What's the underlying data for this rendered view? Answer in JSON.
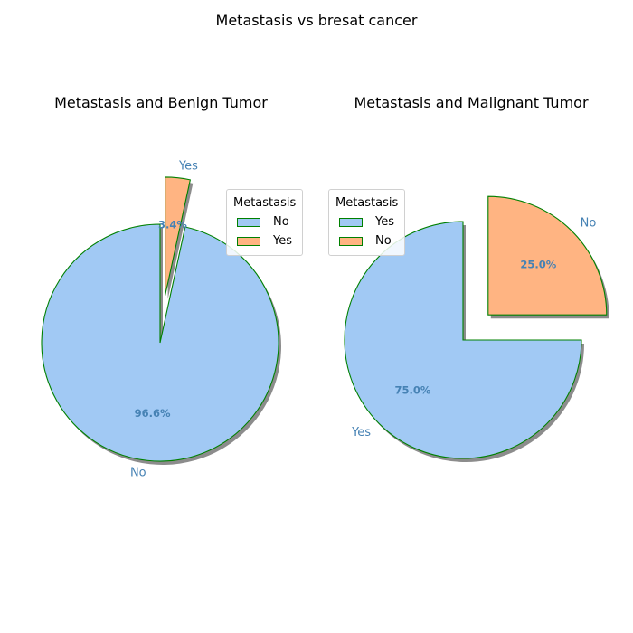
{
  "figure_title": "Metastasis vs bresat cancer",
  "colors": {
    "slice_1": "#a1c9f4",
    "slice_2": "#ffb482",
    "edge": "#008000",
    "label": "#4682b4",
    "pct": "#4682b4",
    "shadow": "#808080"
  },
  "chart_data": [
    {
      "type": "pie",
      "title": "Metastasis and Benign Tumor",
      "legend": {
        "title": "Metastasis",
        "placement": "upper-right"
      },
      "slices": [
        {
          "label": "No",
          "value": 96.6,
          "pct_label": "96.6%",
          "explode": 0
        },
        {
          "label": "Yes",
          "value": 3.4,
          "pct_label": "3.4%",
          "explode": 0.4
        }
      ],
      "start_angle_deg": 90,
      "shadow": true
    },
    {
      "type": "pie",
      "title": "Metastasis and Malignant Tumor",
      "legend": {
        "title": "Metastasis",
        "placement": "upper-left"
      },
      "slices": [
        {
          "label": "Yes",
          "value": 75.0,
          "pct_label": "75.0%",
          "explode": 0
        },
        {
          "label": "No",
          "value": 25.0,
          "pct_label": "25.0%",
          "explode": 0.3
        }
      ],
      "start_angle_deg": 90,
      "shadow": true
    }
  ]
}
